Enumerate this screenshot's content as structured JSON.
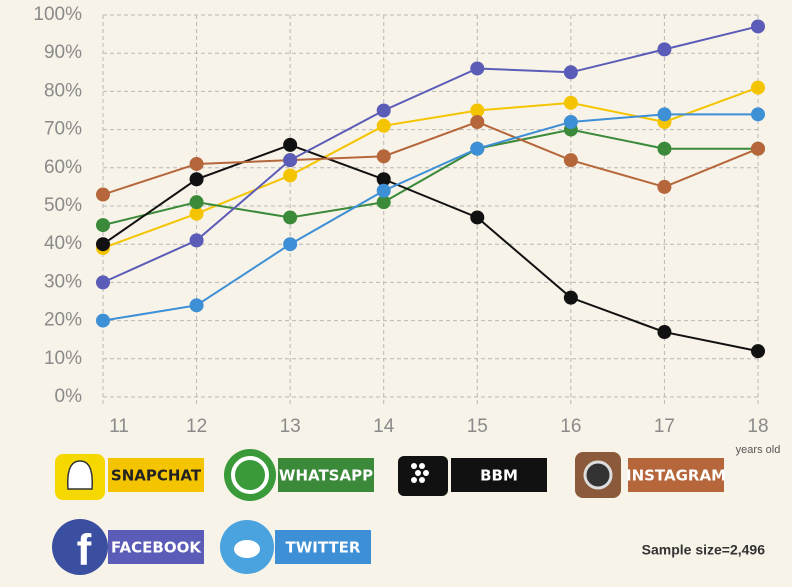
{
  "chart_data": {
    "type": "line",
    "categories": [
      "11",
      "12",
      "13",
      "14",
      "15",
      "16",
      "17",
      "18"
    ],
    "series": [
      {
        "name": "SNAPCHAT",
        "color": "#f5c400",
        "values": [
          39,
          48,
          58,
          71,
          75,
          77,
          72,
          81
        ]
      },
      {
        "name": "WHATSAPP",
        "color": "#3a8a3a",
        "values": [
          45,
          51,
          47,
          51,
          65,
          70,
          65,
          65
        ]
      },
      {
        "name": "BBM",
        "color": "#111111",
        "values": [
          40,
          57,
          66,
          57,
          47,
          26,
          17,
          12
        ]
      },
      {
        "name": "INSTAGRAM",
        "color": "#b5663a",
        "values": [
          53,
          61,
          62,
          63,
          72,
          62,
          55,
          65
        ]
      },
      {
        "name": "FACEBOOK",
        "color": "#5b5bb8",
        "values": [
          30,
          41,
          62,
          75,
          86,
          85,
          91,
          97
        ]
      },
      {
        "name": "TWITTER",
        "color": "#3d8fd6",
        "values": [
          20,
          24,
          40,
          54,
          65,
          72,
          74,
          74
        ]
      }
    ],
    "ylim": [
      0,
      100
    ],
    "yticks": [
      {
        "value": 0,
        "label": "0%"
      },
      {
        "value": 10,
        "label": "10%"
      },
      {
        "value": 20,
        "label": "20%"
      },
      {
        "value": 30,
        "label": "30%"
      },
      {
        "value": 40,
        "label": "40%"
      },
      {
        "value": 50,
        "label": "50%"
      },
      {
        "value": 60,
        "label": "60%"
      },
      {
        "value": 70,
        "label": "70%"
      },
      {
        "value": 80,
        "label": "80%"
      },
      {
        "value": 90,
        "label": "90%"
      },
      {
        "value": 100,
        "label": "100%"
      }
    ],
    "grid": true,
    "x_unit": "years old",
    "note": "Sample size=2,496"
  }
}
